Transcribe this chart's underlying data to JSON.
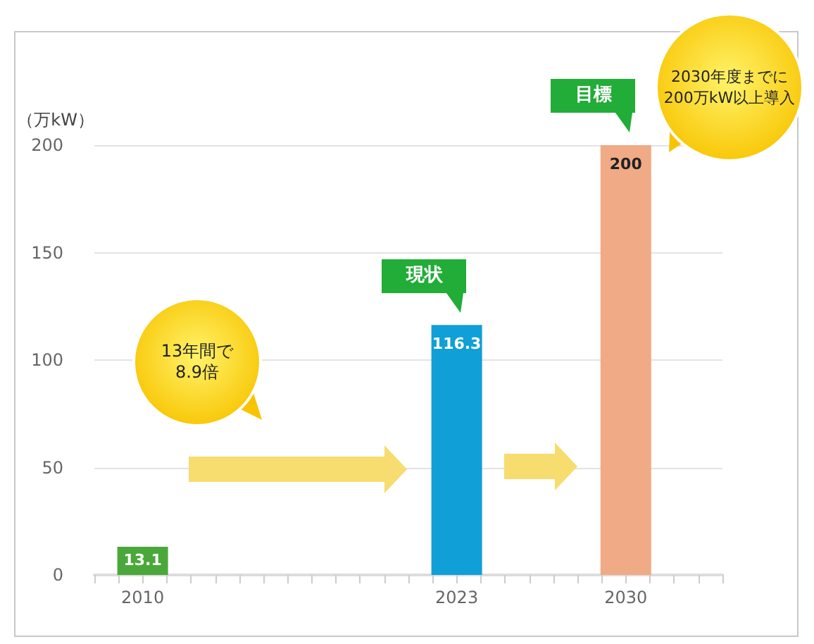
{
  "chart_data": {
    "type": "bar",
    "x": [
      2010,
      2023,
      2030
    ],
    "values": [
      13.1,
      116.3,
      200
    ],
    "colors": [
      "#4aa83a",
      "#109fd6",
      "#f0aa86"
    ],
    "ylabel": "（万kW）",
    "xlim": [
      2008,
      2034
    ],
    "xticks": [
      {
        "value": 2008,
        "label": null
      },
      {
        "value": 2009,
        "label": null
      },
      2010,
      {
        "value": 2011,
        "label": null
      },
      {
        "value": 2012,
        "label": null
      },
      {
        "value": 2013,
        "label": null
      },
      {
        "value": 2014,
        "label": null
      },
      {
        "value": 2015,
        "label": null
      },
      {
        "value": 2016,
        "label": null
      },
      {
        "value": 2017,
        "label": null
      },
      {
        "value": 2018,
        "label": null
      },
      {
        "value": 2019,
        "label": null
      },
      {
        "value": 2020,
        "label": null
      },
      {
        "value": 2021,
        "label": null
      },
      {
        "value": 2022,
        "label": null
      },
      2023,
      {
        "value": 2024,
        "label": null
      },
      {
        "value": 2025,
        "label": null
      },
      {
        "value": 2026,
        "label": null
      },
      {
        "value": 2027,
        "label": null
      },
      {
        "value": 2028,
        "label": null
      },
      {
        "value": 2029,
        "label": null
      },
      2030,
      {
        "value": 2031,
        "label": null
      },
      {
        "value": 2032,
        "label": null
      },
      {
        "value": 2033,
        "label": null
      },
      {
        "value": 2034,
        "label": null
      }
    ],
    "ylim": [
      0,
      200
    ],
    "yticks": [
      0,
      50,
      100,
      150,
      200
    ],
    "grid": "y",
    "data_labels": true,
    "annotations": [
      {
        "text": "現状",
        "x": 2023,
        "y": 116.3
      },
      {
        "text": "目標",
        "x": 2030,
        "y": 200
      },
      "13年間で\n8.9倍",
      "2030年度までに\n200万kW以上導入"
    ]
  }
}
